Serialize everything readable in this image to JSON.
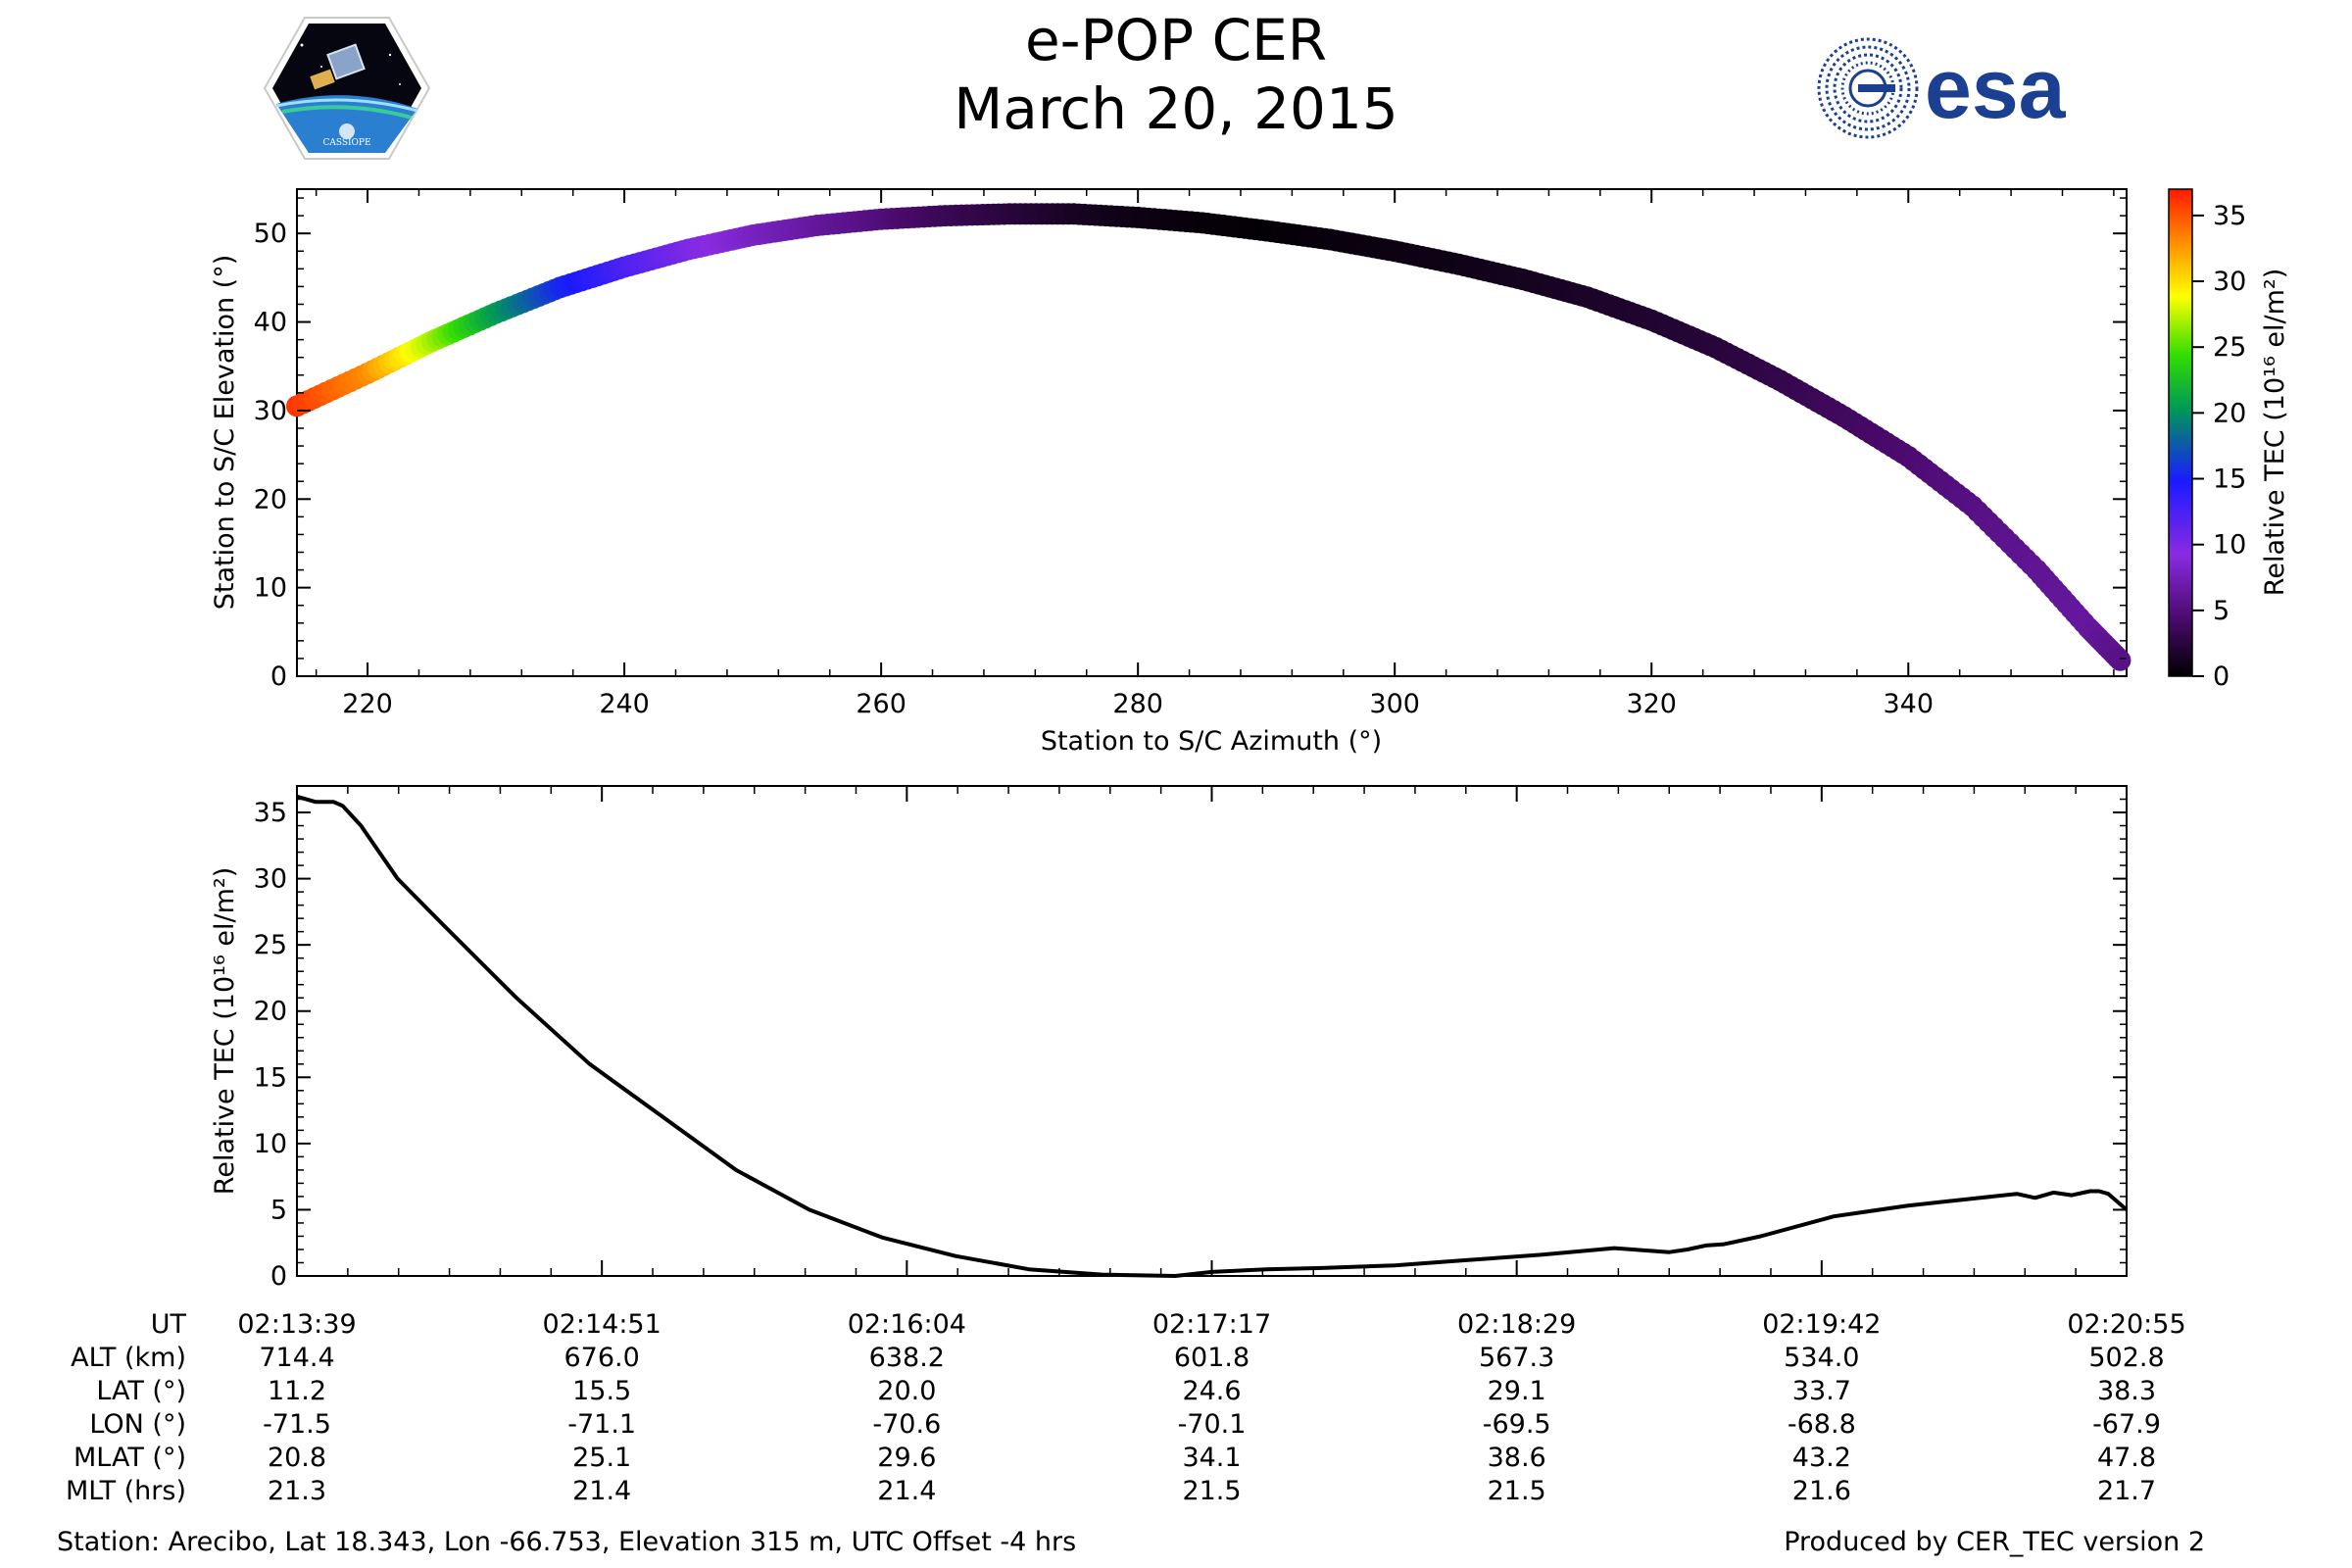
{
  "header": {
    "title_line1": "e-POP CER",
    "title_line2": "March 20, 2015",
    "logo_left_text": "CASSIOPE",
    "logo_right_text": "esa"
  },
  "chart_data": [
    {
      "type": "scatter",
      "title": "",
      "xlabel": "Station to S/C Azimuth (°)",
      "ylabel": "Station to S/C Elevation (°)",
      "xlim": [
        214.5,
        357
      ],
      "ylim": [
        0,
        55
      ],
      "xticks": [
        220,
        240,
        260,
        280,
        300,
        320,
        340
      ],
      "yticks": [
        0,
        10,
        20,
        30,
        40,
        50
      ],
      "colorbar": {
        "label": "Relative TEC (10¹⁶ el/m²)",
        "range": [
          0,
          37
        ],
        "ticks": [
          0,
          5,
          10,
          15,
          20,
          25,
          30,
          35
        ],
        "colormap": "gnuplot-rainbow"
      },
      "track": [
        {
          "az": 214.5,
          "el": 30.5,
          "tec": 36.0
        },
        {
          "az": 220,
          "el": 34.2,
          "tec": 33.0
        },
        {
          "az": 225,
          "el": 37.8,
          "tec": 27.0
        },
        {
          "az": 230,
          "el": 41.0,
          "tec": 20.5
        },
        {
          "az": 235,
          "el": 43.9,
          "tec": 15.5
        },
        {
          "az": 240,
          "el": 46.2,
          "tec": 12.5
        },
        {
          "az": 245,
          "el": 48.2,
          "tec": 10.0
        },
        {
          "az": 250,
          "el": 49.8,
          "tec": 8.0
        },
        {
          "az": 255,
          "el": 50.9,
          "tec": 6.5
        },
        {
          "az": 260,
          "el": 51.6,
          "tec": 5.0
        },
        {
          "az": 265,
          "el": 52.0,
          "tec": 3.5
        },
        {
          "az": 270,
          "el": 52.2,
          "tec": 2.5
        },
        {
          "az": 275,
          "el": 52.2,
          "tec": 1.5
        },
        {
          "az": 280,
          "el": 51.8,
          "tec": 0.8
        },
        {
          "az": 285,
          "el": 51.2,
          "tec": 0.4
        },
        {
          "az": 290,
          "el": 50.3,
          "tec": 0.2
        },
        {
          "az": 295,
          "el": 49.3,
          "tec": 0.5
        },
        {
          "az": 300,
          "el": 48.0,
          "tec": 0.7
        },
        {
          "az": 305,
          "el": 46.5,
          "tec": 0.9
        },
        {
          "az": 310,
          "el": 44.8,
          "tec": 1.2
        },
        {
          "az": 315,
          "el": 42.8,
          "tec": 1.6
        },
        {
          "az": 320,
          "el": 40.2,
          "tec": 1.9
        },
        {
          "az": 325,
          "el": 37.1,
          "tec": 2.3
        },
        {
          "az": 330,
          "el": 33.4,
          "tec": 3.0
        },
        {
          "az": 335,
          "el": 29.3,
          "tec": 3.8
        },
        {
          "az": 340,
          "el": 24.8,
          "tec": 4.5
        },
        {
          "az": 345,
          "el": 19.2,
          "tec": 5.3
        },
        {
          "az": 350,
          "el": 12.0,
          "tec": 6.0
        },
        {
          "az": 354,
          "el": 5.5,
          "tec": 6.4
        },
        {
          "az": 356.5,
          "el": 1.8,
          "tec": 5.5
        }
      ]
    },
    {
      "type": "line",
      "title": "",
      "xlabel": "",
      "ylabel": "Relative TEC (10¹⁶ el/m²)",
      "xlim": [
        0,
        1
      ],
      "ylim": [
        0,
        37
      ],
      "yticks": [
        0,
        5,
        10,
        15,
        20,
        25,
        30,
        35
      ],
      "series": [
        {
          "name": "Relative TEC",
          "x": [
            0,
            0.01,
            0.02,
            0.025,
            0.035,
            0.045,
            0.055,
            0.08,
            0.12,
            0.16,
            0.2,
            0.24,
            0.28,
            0.32,
            0.36,
            0.4,
            0.44,
            0.48,
            0.5,
            0.53,
            0.56,
            0.6,
            0.64,
            0.68,
            0.72,
            0.75,
            0.76,
            0.77,
            0.78,
            0.8,
            0.84,
            0.88,
            0.9,
            0.92,
            0.94,
            0.95,
            0.96,
            0.97,
            0.98,
            0.985,
            0.99,
            1.0
          ],
          "y": [
            36.2,
            35.8,
            35.8,
            35.5,
            34.0,
            32.0,
            30.0,
            26.5,
            21.0,
            16.0,
            12.0,
            8.0,
            5.0,
            2.9,
            1.5,
            0.5,
            0.1,
            0.0,
            0.3,
            0.5,
            0.6,
            0.8,
            1.2,
            1.6,
            2.1,
            1.8,
            2.0,
            2.3,
            2.4,
            3.0,
            4.5,
            5.3,
            5.6,
            5.9,
            6.2,
            5.9,
            6.3,
            6.1,
            6.4,
            6.4,
            6.2,
            5.0
          ]
        }
      ]
    }
  ],
  "ephemeris": {
    "labels": [
      "UT",
      "ALT (km)",
      "LAT (°)",
      "LON (°)",
      "MLAT (°)",
      "MLT (hrs)"
    ],
    "columns": [
      [
        "02:13:39",
        "714.4",
        "11.2",
        "-71.5",
        "20.8",
        "21.3"
      ],
      [
        "02:14:51",
        "676.0",
        "15.5",
        "-71.1",
        "25.1",
        "21.4"
      ],
      [
        "02:16:04",
        "638.2",
        "20.0",
        "-70.6",
        "29.6",
        "21.4"
      ],
      [
        "02:17:17",
        "601.8",
        "24.6",
        "-70.1",
        "34.1",
        "21.5"
      ],
      [
        "02:18:29",
        "567.3",
        "29.1",
        "-69.5",
        "38.6",
        "21.5"
      ],
      [
        "02:19:42",
        "534.0",
        "33.7",
        "-68.8",
        "43.2",
        "21.6"
      ],
      [
        "02:20:55",
        "502.8",
        "38.3",
        "-67.9",
        "47.8",
        "21.7"
      ]
    ]
  },
  "footer": {
    "station": "Station: Arecibo, Lat 18.343, Lon -66.753, Elevation 315 m, UTC Offset -4 hrs",
    "produced": "Produced by CER_TEC version 2"
  }
}
